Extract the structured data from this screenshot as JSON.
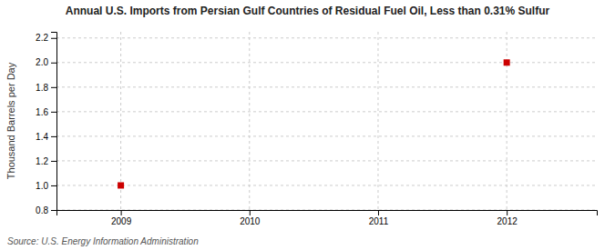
{
  "chart_data": {
    "type": "scatter",
    "title": "Annual U.S. Imports from Persian Gulf Countries of Residual Fuel Oil, Less than 0.31% Sulfur",
    "ylabel": "Thousand Barrels per Day",
    "source": "Source: U.S. Energy Information Administration",
    "x": [
      2009,
      2012
    ],
    "values": [
      1.0,
      2.0
    ],
    "color": "#cc0000",
    "marker": "square",
    "xlim": [
      2008.5,
      2012.7
    ],
    "ylim": [
      0.8,
      2.25
    ],
    "xticks": [
      2009,
      2010,
      2011,
      2012
    ],
    "yticks": [
      0.8,
      {
        "value": 1.0,
        "label": "1.0"
      },
      1.2,
      1.4,
      1.6,
      1.8,
      {
        "value": 2.0,
        "label": "2.0"
      },
      2.2
    ],
    "grid": true
  }
}
